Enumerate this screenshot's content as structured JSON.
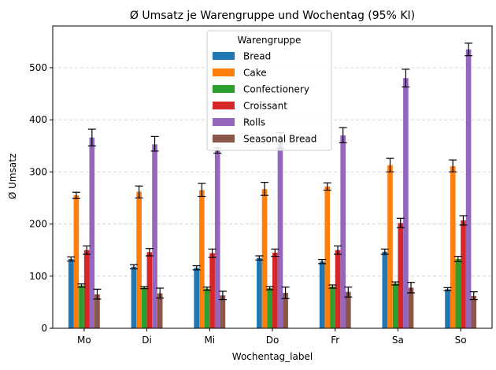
{
  "chart_data": {
    "type": "bar",
    "title": "Ø Umsatz je Warengruppe und Wochentag (95% KI)",
    "xlabel": "Wochentag_label",
    "ylabel": "Ø Umsatz",
    "ylim": [
      0,
      580
    ],
    "yticks": [
      0,
      100,
      200,
      300,
      400,
      500
    ],
    "grid": "y-dashed",
    "categories": [
      "Mo",
      "Di",
      "Mi",
      "Do",
      "Fr",
      "Sa",
      "So"
    ],
    "legend": {
      "title": "Warengruppe",
      "placement": "top-center"
    },
    "series": [
      {
        "name": "Bread",
        "color": "#1f77b4",
        "values": [
          133,
          118,
          116,
          135,
          128,
          147,
          75
        ],
        "ci": [
          [
            129,
            137
          ],
          [
            114,
            122
          ],
          [
            112,
            120
          ],
          [
            131,
            139
          ],
          [
            124,
            132
          ],
          [
            142,
            152
          ],
          [
            72,
            78
          ]
        ]
      },
      {
        "name": "Cake",
        "color": "#ff7f0e",
        "values": [
          255,
          262,
          265,
          267,
          272,
          313,
          311
        ],
        "ci": [
          [
            249,
            261
          ],
          [
            250,
            273
          ],
          [
            253,
            278
          ],
          [
            255,
            280
          ],
          [
            265,
            279
          ],
          [
            300,
            326
          ],
          [
            300,
            323
          ]
        ]
      },
      {
        "name": "Confectionery",
        "color": "#2ca02c",
        "values": [
          82,
          78,
          76,
          77,
          80,
          86,
          133
        ],
        "ci": [
          [
            79,
            85
          ],
          [
            76,
            80
          ],
          [
            73,
            79
          ],
          [
            74,
            80
          ],
          [
            77,
            83
          ],
          [
            83,
            89
          ],
          [
            128,
            138
          ]
        ]
      },
      {
        "name": "Croissant",
        "color": "#d62728",
        "values": [
          150,
          146,
          144,
          145,
          150,
          202,
          207
        ],
        "ci": [
          [
            142,
            158
          ],
          [
            139,
            153
          ],
          [
            136,
            152
          ],
          [
            138,
            152
          ],
          [
            142,
            158
          ],
          [
            193,
            211
          ],
          [
            198,
            216
          ]
        ]
      },
      {
        "name": "Rolls",
        "color": "#9467bd",
        "values": [
          366,
          353,
          341,
          360,
          370,
          480,
          535
        ],
        "ci": [
          [
            350,
            382
          ],
          [
            340,
            368
          ],
          [
            336,
            346
          ],
          [
            345,
            375
          ],
          [
            356,
            385
          ],
          [
            463,
            497
          ],
          [
            523,
            547
          ]
        ]
      },
      {
        "name": "Seasonal Bread",
        "color": "#8c564b",
        "values": [
          65,
          67,
          63,
          68,
          70,
          78,
          62
        ],
        "ci": [
          [
            56,
            75
          ],
          [
            58,
            77
          ],
          [
            55,
            71
          ],
          [
            57,
            79
          ],
          [
            60,
            79
          ],
          [
            68,
            88
          ],
          [
            55,
            70
          ]
        ]
      }
    ]
  }
}
